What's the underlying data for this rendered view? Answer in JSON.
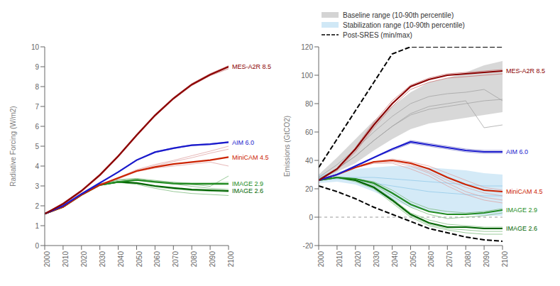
{
  "chart_data": [
    {
      "type": "line",
      "x": [
        2000,
        2010,
        2020,
        2030,
        2040,
        2050,
        2060,
        2070,
        2080,
        2090,
        2100
      ],
      "xlim": [
        2000,
        2100
      ],
      "xticks": [
        2000,
        2010,
        2020,
        2030,
        2040,
        2050,
        2060,
        2070,
        2080,
        2090,
        2100
      ],
      "ylabel": "Radiative Forcing (W/m2)",
      "ylim": [
        0,
        10
      ],
      "yticks": [
        0,
        1,
        2,
        3,
        4,
        5,
        6,
        7,
        8,
        9,
        10
      ],
      "series": [
        {
          "color": "#c87070",
          "values": [
            1.6,
            2.05,
            2.7,
            3.5,
            4.45,
            5.5,
            6.5,
            7.35,
            8.05,
            8.55,
            8.9
          ]
        },
        {
          "color": "#c87070",
          "values": [
            1.6,
            2.15,
            2.8,
            3.6,
            4.55,
            5.6,
            6.6,
            7.45,
            8.15,
            8.65,
            9.05
          ]
        },
        {
          "color": "#8080cc",
          "values": [
            1.6,
            2.0,
            2.6,
            3.15,
            3.72,
            4.32,
            4.72,
            4.92,
            5.07,
            5.12,
            5.22
          ]
        },
        {
          "color": "#8080cc",
          "values": [
            1.6,
            2.0,
            2.6,
            3.15,
            3.68,
            4.28,
            4.68,
            4.88,
            5.03,
            5.08,
            5.18
          ]
        },
        {
          "color": "#dda0a0",
          "values": [
            1.6,
            1.95,
            2.55,
            3.05,
            3.42,
            3.82,
            4.08,
            4.28,
            4.52,
            4.75,
            5.0
          ]
        },
        {
          "color": "#dda0a0",
          "values": [
            1.6,
            1.95,
            2.55,
            3.05,
            3.38,
            3.78,
            4.02,
            4.22,
            4.42,
            4.65,
            4.85
          ]
        },
        {
          "color": "#dda0a0",
          "values": [
            1.6,
            1.95,
            2.55,
            3.05,
            3.35,
            3.72,
            3.9,
            4.0,
            4.1,
            4.2,
            4.0
          ]
        },
        {
          "color": "#78b878",
          "values": [
            1.6,
            1.95,
            2.55,
            3.05,
            3.22,
            3.32,
            3.25,
            3.18,
            3.15,
            3.15,
            3.18
          ]
        },
        {
          "color": "#78b878",
          "values": [
            1.6,
            1.95,
            2.55,
            3.05,
            3.18,
            3.12,
            2.95,
            2.85,
            2.77,
            2.73,
            2.7
          ]
        },
        {
          "color": "#78b878",
          "values": [
            1.6,
            1.95,
            2.55,
            3.1,
            3.28,
            3.35,
            3.22,
            3.1,
            2.98,
            2.88,
            2.82
          ]
        },
        {
          "color": "#78b878",
          "values": [
            1.6,
            1.95,
            2.55,
            3.1,
            3.32,
            3.38,
            3.28,
            3.18,
            3.08,
            2.98,
            3.5
          ]
        },
        {
          "color": "#78b878",
          "values": [
            1.6,
            1.95,
            2.55,
            3.05,
            3.18,
            3.08,
            2.88,
            2.72,
            2.62,
            2.57,
            2.52
          ]
        },
        {
          "name": "IMAGE 2.6",
          "color": "#006400",
          "values": [
            1.6,
            1.95,
            2.55,
            3.05,
            3.2,
            3.15,
            3.0,
            2.9,
            2.82,
            2.78,
            2.75
          ]
        },
        {
          "name": "IMAGE 2.9",
          "color": "#228B22",
          "values": [
            1.6,
            1.95,
            2.55,
            3.05,
            3.2,
            3.3,
            3.2,
            3.12,
            3.1,
            3.1,
            3.1
          ]
        },
        {
          "name": "MiniCAM 4.5",
          "color": "#cc2200",
          "values": [
            1.6,
            1.95,
            2.55,
            3.05,
            3.4,
            3.75,
            3.95,
            4.1,
            4.2,
            4.3,
            4.45
          ]
        },
        {
          "name": "AIM 6.0",
          "color": "#1a1acd",
          "values": [
            1.6,
            2.0,
            2.6,
            3.15,
            3.7,
            4.3,
            4.7,
            4.9,
            5.05,
            5.1,
            5.2
          ]
        },
        {
          "name": "MES-A2R 8.5",
          "color": "#8B0000",
          "values": [
            1.6,
            2.1,
            2.75,
            3.55,
            4.5,
            5.55,
            6.55,
            7.4,
            8.1,
            8.6,
            9.0
          ]
        }
      ]
    },
    {
      "type": "line",
      "x": [
        2000,
        2010,
        2020,
        2030,
        2040,
        2050,
        2060,
        2070,
        2080,
        2090,
        2100
      ],
      "xlim": [
        2000,
        2100
      ],
      "xticks": [
        2000,
        2010,
        2020,
        2030,
        2040,
        2050,
        2060,
        2070,
        2080,
        2090,
        2100
      ],
      "ylabel": "Emissions (GtCO2)",
      "ylim": [
        -20,
        120
      ],
      "yticks": [
        -20,
        0,
        20,
        40,
        60,
        80,
        100,
        120
      ],
      "legend": "upper left",
      "hlines": [
        {
          "value": 0,
          "color": "#999999",
          "line_style": "dashed"
        }
      ],
      "series": [
        {
          "name": "Baseline range (10-90th percentile)",
          "type": "range",
          "color": "#b8b8b8",
          "lower": [
            26,
            32,
            38,
            47,
            55,
            62,
            66,
            68,
            70,
            72,
            74
          ],
          "upper": [
            30,
            42,
            55,
            68,
            78,
            88,
            95,
            98,
            102,
            107,
            110
          ]
        },
        {
          "color": "#a0a0a0",
          "values": [
            28,
            37,
            48,
            60,
            71,
            80,
            85,
            87,
            88,
            90,
            82
          ]
        },
        {
          "color": "#a0a0a0",
          "values": [
            27,
            34,
            43,
            54,
            64,
            72,
            76,
            78,
            80,
            82,
            83
          ]
        },
        {
          "color": "#a0a0a0",
          "values": [
            27,
            34,
            43,
            54,
            64,
            73,
            78,
            80,
            82,
            63,
            65
          ]
        },
        {
          "name": "Stabilization range (10-90th percentile)",
          "type": "range",
          "color": "#b0d8f0",
          "lower": [
            24,
            25,
            23,
            18,
            12,
            7,
            4,
            3,
            2,
            1,
            1
          ],
          "upper": [
            30,
            32,
            34,
            35,
            36,
            36,
            35,
            34,
            33,
            31,
            30
          ]
        },
        {
          "color": "#90c8e8",
          "values": [
            27,
            28,
            28,
            28,
            27,
            26,
            25,
            24,
            23,
            22,
            22
          ]
        },
        {
          "color": "#90c8e8",
          "values": [
            26,
            27,
            26,
            24,
            22,
            20,
            18,
            17,
            16,
            15,
            15
          ]
        },
        {
          "name": "Post-SRES (min/max)",
          "type": "range",
          "line_style": "dashed",
          "color": "#000000",
          "lower": [
            22,
            18,
            13,
            7,
            2,
            -3,
            -8,
            -11,
            -14,
            -16,
            -17
          ],
          "upper": [
            35,
            55,
            75,
            95,
            115,
            120,
            120,
            120,
            120,
            120,
            120
          ]
        },
        {
          "color": "#c87070",
          "values": [
            26,
            33,
            46,
            63,
            78,
            90,
            95,
            98,
            99,
            100,
            101
          ]
        },
        {
          "color": "#c87070",
          "values": [
            26,
            34,
            49,
            67,
            82,
            93,
            98,
            101,
            102,
            103,
            104
          ]
        },
        {
          "color": "#8080cc",
          "values": [
            26,
            30,
            36,
            42,
            48,
            54,
            52,
            50,
            48,
            47,
            47
          ]
        },
        {
          "color": "#8080cc",
          "values": [
            26,
            30,
            36,
            42,
            47,
            52,
            50,
            48,
            46,
            45,
            45
          ]
        },
        {
          "color": "#dda0a0",
          "values": [
            26,
            30,
            35,
            39,
            41,
            39,
            36,
            31,
            26,
            21,
            19
          ]
        },
        {
          "color": "#dda0a0",
          "values": [
            26,
            30,
            35,
            39,
            40,
            37,
            32,
            26,
            21,
            17,
            15
          ]
        },
        {
          "color": "#dda0a0",
          "values": [
            26,
            30,
            35,
            38,
            39,
            36,
            31,
            24,
            18,
            14,
            12
          ]
        },
        {
          "color": "#dda0a0",
          "values": [
            26,
            30,
            35,
            38,
            38,
            34,
            29,
            22,
            16,
            12,
            10
          ]
        },
        {
          "color": "#78b878",
          "values": [
            26,
            28,
            27,
            25,
            19,
            11,
            6,
            4,
            3,
            4,
            6
          ]
        },
        {
          "color": "#78b878",
          "values": [
            26,
            28,
            27,
            23,
            15,
            7,
            2,
            -1,
            0,
            1,
            3
          ]
        },
        {
          "color": "#78b878",
          "values": [
            26,
            28,
            26,
            21,
            11,
            1,
            -5,
            -8,
            -9,
            -10,
            -10
          ]
        },
        {
          "color": "#78b878",
          "values": [
            26,
            28,
            26,
            22,
            13,
            3,
            -2,
            -5,
            -6,
            -7,
            -7
          ]
        },
        {
          "color": "#78b878",
          "values": [
            26,
            28,
            25,
            20,
            10,
            0,
            -6,
            -9,
            -11,
            -12,
            -12
          ]
        },
        {
          "name": "IMAGE 2.6",
          "color": "#006400",
          "values": [
            26,
            28,
            26,
            21,
            12,
            2,
            -4,
            -7,
            -7,
            -8,
            -8
          ]
        },
        {
          "name": "IMAGE 2.9",
          "color": "#228B22",
          "values": [
            26,
            28,
            27,
            24,
            17,
            9,
            4,
            2,
            2,
            3,
            5
          ]
        },
        {
          "name": "MiniCAM 4.5",
          "color": "#cc2200",
          "values": [
            26,
            30,
            35,
            39,
            40,
            38,
            34,
            28,
            23,
            19,
            18
          ]
        },
        {
          "name": "AIM 6.0",
          "color": "#1a1acd",
          "values": [
            26,
            30,
            36,
            42,
            48,
            53,
            51,
            49,
            47,
            46,
            46
          ]
        },
        {
          "name": "MES-A2R 8.5",
          "color": "#8B0000",
          "values": [
            26,
            34,
            48,
            65,
            80,
            92,
            97,
            100,
            101,
            102,
            103
          ]
        }
      ]
    }
  ]
}
